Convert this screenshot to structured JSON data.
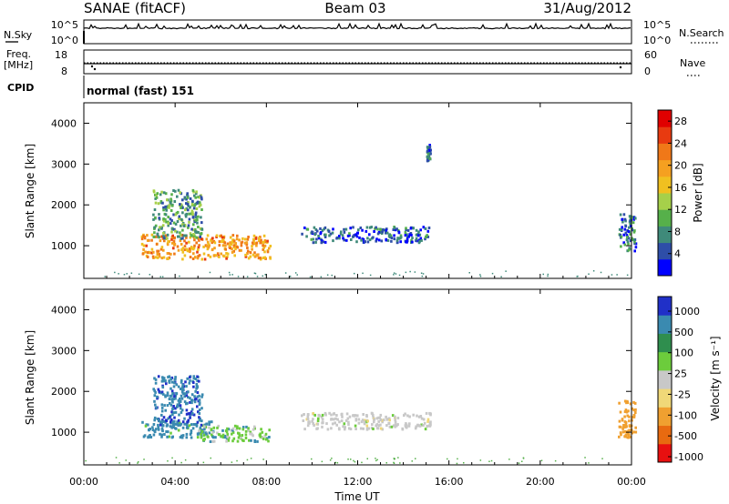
{
  "header": {
    "station": "SANAE (fitACF)",
    "beam": "Beam 03",
    "date": "31/Aug/2012"
  },
  "strip_labels": {
    "nsky": "N.Sky",
    "nsky_ticks": [
      "10^5",
      "10^0"
    ],
    "nsearch": "N.Search",
    "nsearch_ticks": [
      "10^5",
      "10^0"
    ],
    "freq_label_1": "Freq.",
    "freq_label_2": "[MHz]",
    "freq_ticks": [
      "18",
      "8"
    ],
    "nave": "Nave",
    "nave_ticks": [
      "60",
      "0"
    ],
    "cpid": "CPID",
    "cpid_value": "normal (fast) 151"
  },
  "colors": {
    "power_scale": [
      "#0000ff",
      "#2e4ea8",
      "#3f8a7a",
      "#56b04a",
      "#a6d04a",
      "#f0c020",
      "#f5a020",
      "#f07818",
      "#e83a10",
      "#e00000"
    ],
    "velocity_scale": [
      "#2030c8",
      "#3a8ab0",
      "#2f8e4e",
      "#6ccc3c",
      "#c8c8c8",
      "#f0d878",
      "#f0a030",
      "#e86a10",
      "#e81010"
    ]
  },
  "chart_data": [
    {
      "type": "heatmap",
      "name": "power",
      "ylabel": "Slant Range [km]",
      "xlabel": "Time UT",
      "x_ticks": [
        "00:00",
        "04:00",
        "08:00",
        "12:00",
        "16:00",
        "20:00",
        "00:00"
      ],
      "y_ticks": [
        1000,
        2000,
        3000,
        4000
      ],
      "xlim_hours": [
        0,
        24
      ],
      "ylim_km": [
        200,
        4500
      ],
      "colorbar": {
        "label": "Power [dB]",
        "ticks": [
          4,
          8,
          12,
          16,
          20,
          24,
          28
        ],
        "range": [
          0,
          30
        ]
      },
      "features": [
        {
          "t_start": 2.5,
          "t_end": 8.0,
          "r_start": 700,
          "r_end": 1300,
          "level": 20
        },
        {
          "t_start": 3.0,
          "t_end": 5.0,
          "r_start": 1200,
          "r_end": 2400,
          "level": 9
        },
        {
          "t_start": 9.5,
          "t_end": 15.0,
          "r_start": 1100,
          "r_end": 1500,
          "level": 5
        },
        {
          "t_start": 15.0,
          "t_end": 15.0,
          "r_start": 3100,
          "r_end": 3500,
          "level": 6
        },
        {
          "t_start": 23.4,
          "t_end": 24.0,
          "r_start": 900,
          "r_end": 1800,
          "level": 6
        }
      ]
    },
    {
      "type": "heatmap",
      "name": "velocity",
      "ylabel": "Slant Range [km]",
      "xlabel": "Time UT",
      "x_ticks": [
        "00:00",
        "04:00",
        "08:00",
        "12:00",
        "16:00",
        "20:00",
        "00:00"
      ],
      "y_ticks": [
        1000,
        2000,
        3000,
        4000
      ],
      "xlim_hours": [
        0,
        24
      ],
      "ylim_km": [
        200,
        4500
      ],
      "colorbar": {
        "label": "Velocity [m s⁻¹]",
        "ticks": [
          "1000",
          "500",
          "100",
          "25",
          "-25",
          "-100",
          "-500",
          "-1000"
        ]
      },
      "features": [
        {
          "t_start": 2.5,
          "t_end": 5.5,
          "r_start": 900,
          "r_end": 1300,
          "level": 200
        },
        {
          "t_start": 5.0,
          "t_end": 8.0,
          "r_start": 800,
          "r_end": 1200,
          "level": 60
        },
        {
          "t_start": 3.0,
          "t_end": 5.0,
          "r_start": 1200,
          "r_end": 2400,
          "level": 400
        },
        {
          "t_start": 9.5,
          "t_end": 15.0,
          "r_start": 1100,
          "r_end": 1500,
          "level": 0
        },
        {
          "t_start": 23.4,
          "t_end": 24.0,
          "r_start": 900,
          "r_end": 1800,
          "level": -300
        }
      ]
    }
  ]
}
